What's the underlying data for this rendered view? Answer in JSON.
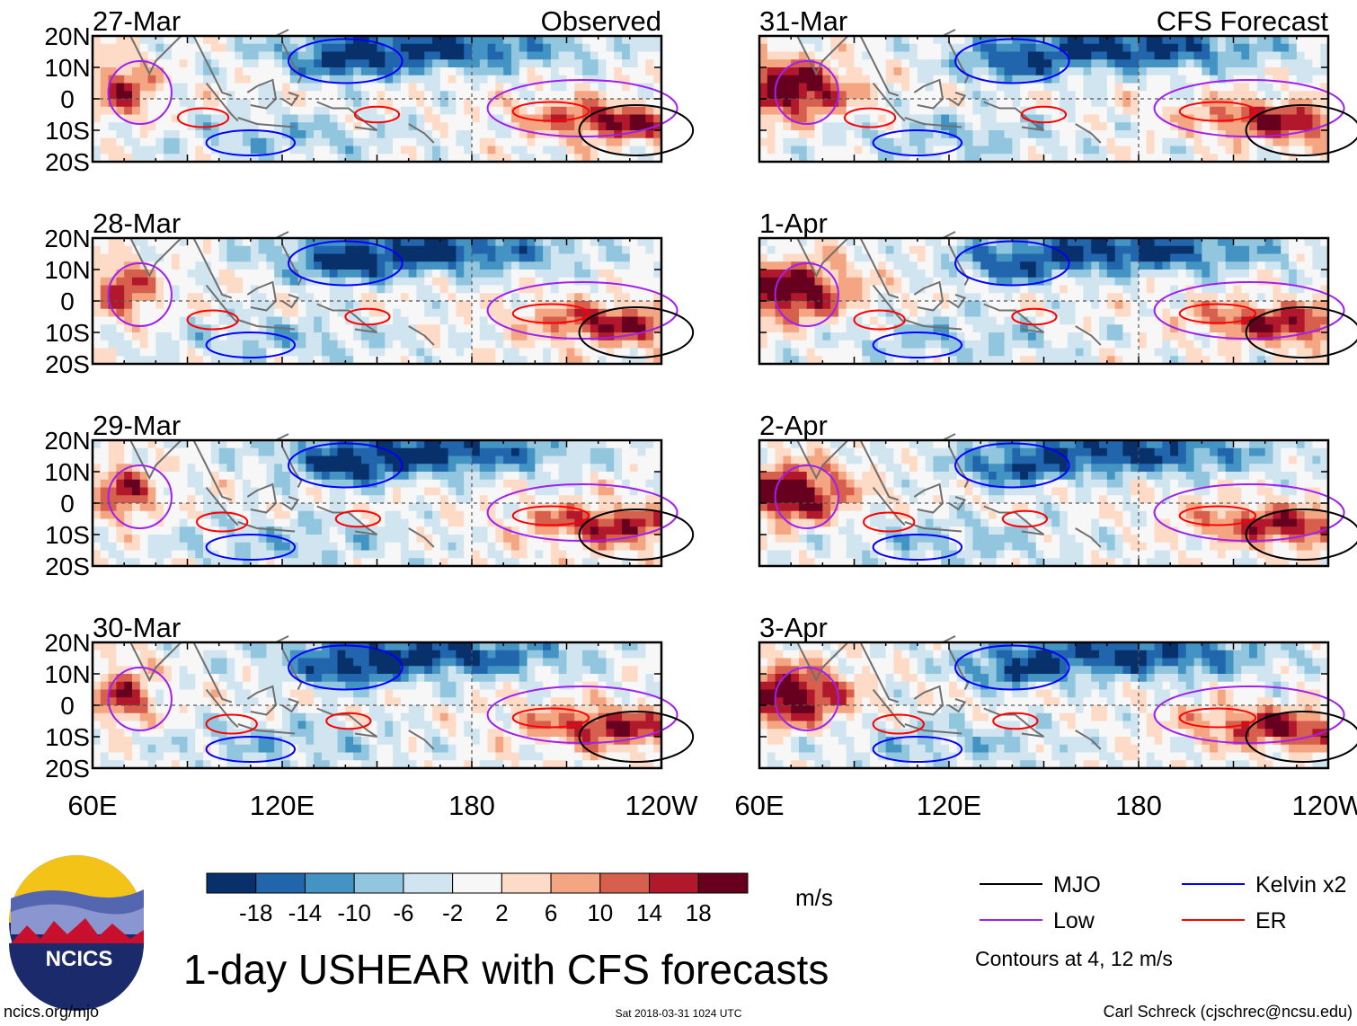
{
  "title": "1-day USHEAR with CFS forecasts",
  "footer": {
    "website": "ncics.org/mjo",
    "timestamp": "Sat 2018-03-31 1024 UTC",
    "credit": "Carl Schreck (cjschrec@ncsu.edu)"
  },
  "logo": {
    "text": "NCICS"
  },
  "chart_data": {
    "type": "heatmap",
    "variable": "USHEAR",
    "units": "m/s",
    "observed_label": "Observed",
    "forecast_label": "CFS Forecast",
    "observed_panels": [
      {
        "date": "27-Mar"
      },
      {
        "date": "28-Mar"
      },
      {
        "date": "29-Mar"
      },
      {
        "date": "30-Mar"
      }
    ],
    "forecast_panels": [
      {
        "date": "31-Mar"
      },
      {
        "date": "1-Apr"
      },
      {
        "date": "2-Apr"
      },
      {
        "date": "3-Apr"
      }
    ],
    "lat_ticks": [
      "20N",
      "10N",
      "0",
      "10S",
      "20S"
    ],
    "lat_values": [
      20,
      10,
      0,
      -10,
      -20
    ],
    "lon_ticks": [
      "60E",
      "120E",
      "180",
      "120W"
    ],
    "lon_values": [
      60,
      120,
      180,
      240
    ],
    "lon_range": [
      60,
      240
    ],
    "lat_range": [
      -20,
      20
    ],
    "colorbar": {
      "tick_labels": [
        "-18",
        "-14",
        "-10",
        "-6",
        "-2",
        "2",
        "6",
        "10",
        "14",
        "18"
      ],
      "colors": [
        "#08306b",
        "#2166ac",
        "#4393c3",
        "#92c5de",
        "#d1e5f0",
        "#f7f7f7",
        "#fddbc7",
        "#f4a582",
        "#d6604d",
        "#b2182b",
        "#67001f"
      ]
    },
    "legend": {
      "items": [
        {
          "label": "MJO",
          "color": "#000000"
        },
        {
          "label": "Kelvin x2",
          "color": "#0000ff"
        },
        {
          "label": "Low",
          "color": "#a020f0"
        },
        {
          "label": "ER",
          "color": "#ff0000"
        }
      ],
      "note": "Contours at 4, 12 m/s"
    }
  }
}
